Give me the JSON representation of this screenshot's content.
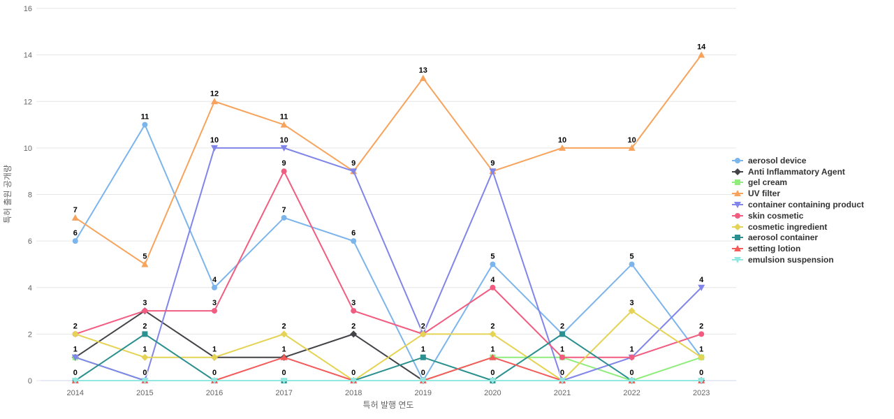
{
  "chart_data": {
    "type": "line",
    "title": "",
    "xlabel": "특허 발행 연도",
    "ylabel": "특허 출원 공개량",
    "categories": [
      "2014",
      "2015",
      "2016",
      "2017",
      "2018",
      "2019",
      "2020",
      "2021",
      "2022",
      "2023"
    ],
    "y_ticks": [
      0,
      2,
      4,
      6,
      8,
      10,
      12,
      14,
      16
    ],
    "ylim": [
      0,
      16
    ],
    "grid": true,
    "legend_position": "right",
    "data_labels": true,
    "series": [
      {
        "name": "aerosol device",
        "color": "#7cb5ec",
        "marker": "circle",
        "values": [
          6,
          11,
          4,
          7,
          6,
          0,
          5,
          2,
          5,
          1
        ]
      },
      {
        "name": "Anti Inflammatory Agent",
        "color": "#434348",
        "marker": "diamond",
        "values": [
          1,
          3,
          1,
          1,
          2,
          0,
          0,
          0,
          0,
          0
        ]
      },
      {
        "name": "gel cream",
        "color": "#90ed7d",
        "marker": "square",
        "values": [
          1,
          0,
          0,
          0,
          0,
          0,
          1,
          1,
          0,
          1
        ]
      },
      {
        "name": "UV filter",
        "color": "#f7a35c",
        "marker": "triangle",
        "values": [
          7,
          5,
          12,
          11,
          9,
          13,
          9,
          10,
          10,
          14
        ]
      },
      {
        "name": "container containing product",
        "color": "#8085e9",
        "marker": "triangle-down",
        "values": [
          1,
          0,
          10,
          10,
          9,
          2,
          9,
          0,
          1,
          4
        ]
      },
      {
        "name": "skin cosmetic",
        "color": "#f15c80",
        "marker": "circle",
        "values": [
          2,
          3,
          3,
          9,
          3,
          2,
          4,
          1,
          1,
          2
        ]
      },
      {
        "name": "cosmetic ingredient",
        "color": "#e4d354",
        "marker": "diamond",
        "values": [
          2,
          1,
          1,
          2,
          0,
          2,
          2,
          0,
          3,
          1
        ]
      },
      {
        "name": "aerosol container",
        "color": "#2b908f",
        "marker": "square",
        "values": [
          0,
          2,
          0,
          0,
          0,
          1,
          0,
          2,
          0,
          0
        ]
      },
      {
        "name": "setting lotion",
        "color": "#f45b5b",
        "marker": "triangle",
        "values": [
          0,
          0,
          0,
          1,
          0,
          0,
          1,
          0,
          0,
          0
        ]
      },
      {
        "name": "emulsion suspension",
        "color": "#91e8e1",
        "marker": "triangle-down",
        "values": [
          0,
          0,
          0,
          0,
          0,
          0,
          0,
          0,
          0,
          0
        ]
      }
    ]
  },
  "colors": {
    "background": "#ffffff",
    "grid_line": "#e6e6e6",
    "x_axis_line": "#ccd6eb",
    "tick_label": "#666666",
    "axis_title": "#666666",
    "legend_text": "#333333",
    "data_label": "#000000"
  }
}
